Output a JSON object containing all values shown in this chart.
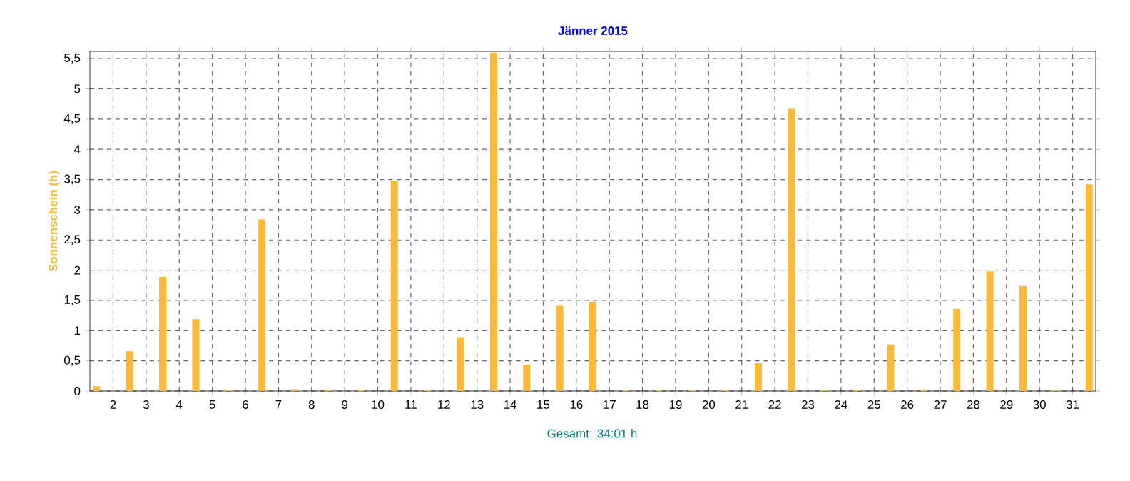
{
  "chart_data": {
    "type": "bar",
    "title": "Jänner 2015",
    "ylabel": "Sonnenschein (h)",
    "annotations": [
      "Gesamt: 34:01 h"
    ],
    "x": [
      1.5,
      2.5,
      3.5,
      4.5,
      5.5,
      6.5,
      7.5,
      8.5,
      9.5,
      10.5,
      11.5,
      12.5,
      13.5,
      14.5,
      15.5,
      16.5,
      17.5,
      18.5,
      19.5,
      20.5,
      21.5,
      22.5,
      23.5,
      24.5,
      25.5,
      26.5,
      27.5,
      28.5,
      29.5,
      30.5,
      31.5
    ],
    "values": [
      0.08,
      0.66,
      1.89,
      1.19,
      0.02,
      2.84,
      0.03,
      0.02,
      0.02,
      3.47,
      0.02,
      0.89,
      5.6,
      0.44,
      1.41,
      1.48,
      0.02,
      0.02,
      0.02,
      0.02,
      0.46,
      4.67,
      0.02,
      0.02,
      0.77,
      0.02,
      1.36,
      1.98,
      1.74,
      0.02,
      3.42
    ],
    "color": "#fbb935",
    "xlim": [
      1.3,
      31.7
    ],
    "xticks": [
      2,
      3,
      4,
      5,
      6,
      7,
      8,
      9,
      10,
      11,
      12,
      13,
      14,
      15,
      16,
      17,
      18,
      19,
      20,
      21,
      22,
      23,
      24,
      25,
      26,
      27,
      28,
      29,
      30,
      31
    ],
    "ylim": [
      0,
      5.62
    ],
    "yticks": [
      0,
      {
        "value": 0.5,
        "label": "0,5"
      },
      1,
      {
        "value": 1.5,
        "label": "1,5"
      },
      2,
      {
        "value": 2.5,
        "label": "2,5"
      },
      3,
      {
        "value": 3.5,
        "label": "3,5"
      },
      4,
      {
        "value": 4.5,
        "label": "4,5"
      },
      5,
      {
        "value": 5.5,
        "label": "5,5"
      }
    ],
    "grid": true
  }
}
